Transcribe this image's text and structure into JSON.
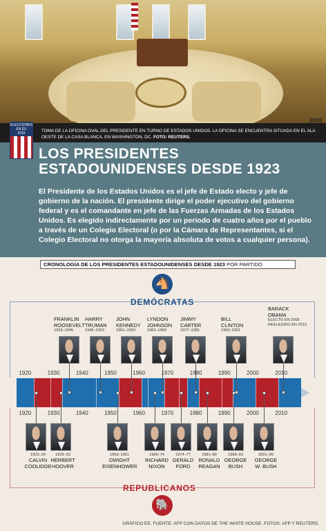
{
  "photo": {
    "year": "2010",
    "caption": "TOMA DE LA OFICINA OVAL DEL PRESIDENTE EN TURNO DE ESTADOS UNIDOS. LA OFICINA SE ENCUENTRA SITUADA EN EL ALA OESTE DE LA CASA BLANCA, EN WASHINGTON, DC.",
    "credit": "FOTO: REUTERS."
  },
  "logo": {
    "line1": "ELECCIONES",
    "line2": "EN EU",
    "line3": "2016"
  },
  "title": {
    "line1": "LOS PRESIDENTES",
    "line2": "ESTADOUNIDENSES DESDE 1923"
  },
  "intro": "El Presidente de los Estados Unidos es el jefe de Estado electo y jefe de gobierno de la nación. El presidente dirige el poder ejecutivo del gobierno federal y es el comandante en jefe de las Fuerzas Armadas de los Estados Unidos. Es elegido indirectamente por un periodo de cuatro años por el pueblo a través de un Colegio Electoral (o por la Cámara de Representantes, si el Colegio Electoral no otorga la mayoría absoluta de votos a cualquier persona).",
  "chronology": {
    "title": "CRONOLOGÍA DE LOS PRESIDENTES ESTADOUNIDENSES DESDE 1923",
    "subtitle": "POR PARTIDO"
  },
  "parties": {
    "democrats": "DEMÓCRATAS",
    "republicans": "REPUBLICANOS"
  },
  "years": [
    "1920",
    "1930",
    "1940",
    "1950",
    "1960",
    "1970",
    "1980",
    "1990",
    "2000",
    "2010"
  ],
  "democrats": [
    {
      "name1": "FRANKLIN",
      "name2": "ROOSEVELT",
      "term": "1933–1945"
    },
    {
      "name1": "HARRY",
      "name2": "TRUMAN",
      "term": "1945–1953"
    },
    {
      "name1": "JOHN",
      "name2": "KENNEDY",
      "term": "1961–1963"
    },
    {
      "name1": "LYNDON",
      "name2": "JOHNSON",
      "term": "1963–1969"
    },
    {
      "name1": "JIMMY",
      "name2": "CARTER",
      "term": "1977–1981"
    },
    {
      "name1": "BILL",
      "name2": "CLINTON",
      "term": "1993–2001"
    },
    {
      "name1": "BARACK",
      "name2": "OBAMA",
      "term": "ELECTO EN 2008 REELEGIDO EN 2012"
    }
  ],
  "republicans": [
    {
      "term": "1923–29",
      "name1": "CALVIN",
      "name2": "COOLIDGE"
    },
    {
      "term": "1929–33",
      "name1": "HERBERT",
      "name2": "HOOVER"
    },
    {
      "term": "1953–1961",
      "name1": "DWIGHT",
      "name2": "EISENHOWER"
    },
    {
      "term": "1969–74",
      "name1": "RICHARD",
      "name2": "NIXON"
    },
    {
      "term": "1974–77",
      "name1": "GERALD",
      "name2": "FORD"
    },
    {
      "term": "1981–89",
      "name1": "RONALD",
      "name2": "REAGAN"
    },
    {
      "term": "1989–93",
      "name1": "GEORGE",
      "name2": "BUSH"
    },
    {
      "term": "2001–09",
      "name1": "GEORGE",
      "name2": "W. BUSH"
    }
  ],
  "timeline_terms": [
    {
      "party": "R",
      "start": 1923,
      "end": 1929
    },
    {
      "party": "R",
      "start": 1929,
      "end": 1933
    },
    {
      "party": "D",
      "start": 1933,
      "end": 1945
    },
    {
      "party": "D",
      "start": 1945,
      "end": 1953
    },
    {
      "party": "R",
      "start": 1953,
      "end": 1961
    },
    {
      "party": "D",
      "start": 1961,
      "end": 1963
    },
    {
      "party": "D",
      "start": 1963,
      "end": 1969
    },
    {
      "party": "R",
      "start": 1969,
      "end": 1974
    },
    {
      "party": "R",
      "start": 1974,
      "end": 1977
    },
    {
      "party": "D",
      "start": 1977,
      "end": 1981
    },
    {
      "party": "R",
      "start": 1981,
      "end": 1989
    },
    {
      "party": "R",
      "start": 1989,
      "end": 1993
    },
    {
      "party": "D",
      "start": 1993,
      "end": 2001
    },
    {
      "party": "R",
      "start": 2001,
      "end": 2009
    },
    {
      "party": "D",
      "start": 2009,
      "end": 2017
    }
  ],
  "colors": {
    "democrat": "#1f6eae",
    "republican": "#b52129",
    "header_band": "#5a7a84"
  },
  "icons": {
    "democrat": "donkey-icon",
    "republican": "elephant-icon"
  },
  "footer": "GRÁFICO EE. FUENTE: AFP CON DATOS DE THE WHITE HOUSE. FOTOS: AFP Y REUTERS."
}
